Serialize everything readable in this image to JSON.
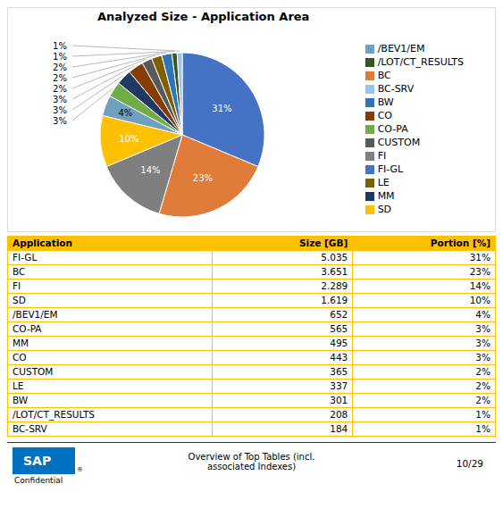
{
  "chart_data": {
    "type": "pie",
    "title": "Analyzed Size - Application Area",
    "categories": [
      "FI-GL",
      "BC",
      "FI",
      "SD",
      "/BEV1/EM",
      "CO-PA",
      "MM",
      "CO",
      "CUSTOM",
      "LE",
      "BW",
      "/LOT/CT_RESULTS",
      "BC-SRV"
    ],
    "values": [
      31,
      23,
      14,
      10,
      4,
      3,
      3,
      3,
      2,
      2,
      2,
      1,
      1
    ],
    "value_labels": [
      "31%",
      "23%",
      "14%",
      "10%",
      "4%",
      "3%",
      "3%",
      "3%",
      "2%",
      "2%",
      "2%",
      "1%",
      "1%"
    ],
    "colors": [
      "#4472C4",
      "#E07B39",
      "#7F7F7F",
      "#FFC000",
      "#70A0C0",
      "#70AD47",
      "#1F3864",
      "#843C00",
      "#595959",
      "#7F6000",
      "#2E75B6",
      "#375623",
      "#9DC3E6"
    ],
    "data_labels": true,
    "legend": "right",
    "table": {
      "headers": [
        "Application",
        "Size [GB]",
        "Portion [%]"
      ],
      "rows": [
        [
          "FI-GL",
          "5.035",
          "31%"
        ],
        [
          "BC",
          "3.651",
          "23%"
        ],
        [
          "FI",
          "2.289",
          "14%"
        ],
        [
          "SD",
          "1.619",
          "10%"
        ],
        [
          "/BEV1/EM",
          "652",
          "4%"
        ],
        [
          "CO-PA",
          "565",
          "3%"
        ],
        [
          "MM",
          "495",
          "3%"
        ],
        [
          "CO",
          "443",
          "3%"
        ],
        [
          "CUSTOM",
          "365",
          "2%"
        ],
        [
          "LE",
          "337",
          "2%"
        ],
        [
          "BW",
          "301",
          "2%"
        ],
        [
          "/LOT/CT_RESULTS",
          "208",
          "1%"
        ],
        [
          "BC-SRV",
          "184",
          "1%"
        ]
      ],
      "header_color": "#FFC000",
      "border_color": "#FFC000"
    },
    "annotations": [
      {
        "text": "SAP",
        "color": "#0070C0"
      },
      {
        "text": "®"
      },
      {
        "text": "Confidential"
      },
      {
        "text": "Overview of Top Tables (incl.\nassociated Indexes)"
      },
      {
        "text": "10/29"
      }
    ]
  }
}
